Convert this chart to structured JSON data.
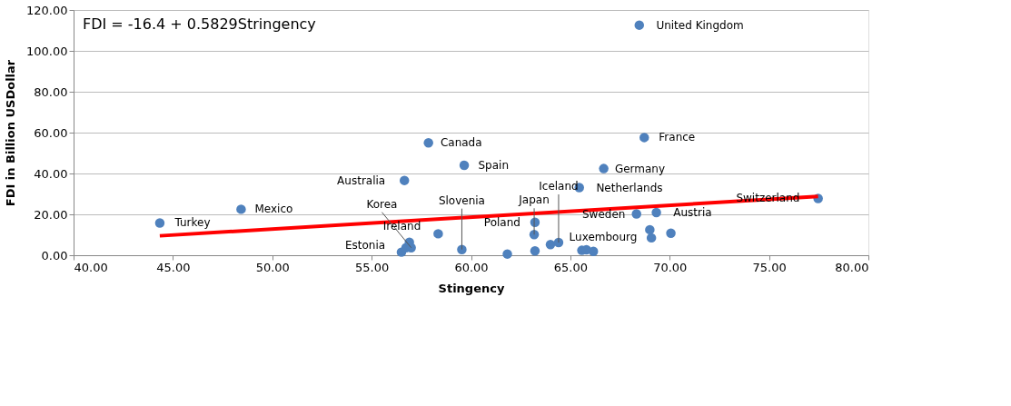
{
  "chart_data": {
    "type": "scatter",
    "xlabel": "Stingency",
    "ylabel": "FDI in Billion USDollar",
    "xlim": [
      40,
      80
    ],
    "ylim": [
      0,
      120
    ],
    "xticks": [
      {
        "value": 40,
        "label": "40.00"
      },
      {
        "value": 45,
        "label": "45.00"
      },
      {
        "value": 50,
        "label": "50.00"
      },
      {
        "value": 55,
        "label": "55.00"
      },
      {
        "value": 60,
        "label": "60.00"
      },
      {
        "value": 65,
        "label": "65.00"
      },
      {
        "value": 70,
        "label": "70.00"
      },
      {
        "value": 75,
        "label": "75.00"
      },
      {
        "value": 80,
        "label": "80.00"
      }
    ],
    "yticks": [
      {
        "value": 0,
        "label": "0.00"
      },
      {
        "value": 20,
        "label": "20.00"
      },
      {
        "value": 40,
        "label": "40.00"
      },
      {
        "value": 60,
        "label": "60.00"
      },
      {
        "value": 80,
        "label": "80.00"
      },
      {
        "value": 100,
        "label": "100.00"
      },
      {
        "value": 120,
        "label": "120.00"
      }
    ],
    "grid": "y",
    "series": [
      {
        "marker": "circle",
        "color": "#4f81bd",
        "x": [
          44.34,
          48.43,
          57.86,
          59.66,
          56.65,
          68.47,
          68.72,
          66.68,
          65.45,
          68.33,
          69.33,
          69.0,
          69.08,
          70.06,
          77.47,
          58.35,
          56.5,
          56.73,
          56.9,
          56.99,
          59.54,
          61.83,
          63.22,
          63.18,
          63.22,
          64.0,
          64.41,
          65.58,
          65.81,
          66.16
        ],
        "values": [
          15.8,
          22.5,
          55.0,
          44.0,
          36.6,
          112.6,
          57.6,
          42.4,
          33.1,
          20.2,
          20.9,
          12.5,
          8.5,
          10.8,
          27.8,
          10.5,
          1.5,
          3.7,
          6.3,
          3.7,
          2.8,
          0.6,
          16.1,
          10.1,
          2.1,
          5.2,
          6.2,
          2.4,
          2.7,
          1.9
        ]
      },
      {
        "type": "line",
        "line_style": "solid",
        "marker": "none",
        "color": "#ff0000",
        "x": [
          44.34,
          77.47
        ],
        "values": [
          9.5,
          28.8
        ]
      }
    ],
    "annotations": [
      "FDI = -16.4 + 0.5829Stringency",
      {
        "text": "United Kingdom",
        "x": 68.47,
        "y": 112.6
      },
      {
        "text": "France",
        "x": 68.72,
        "y": 57.6
      },
      {
        "text": "Canada",
        "x": 57.86,
        "y": 55.0
      },
      {
        "text": "Spain",
        "x": 59.66,
        "y": 44.0
      },
      {
        "text": "Australia",
        "x": 56.65,
        "y": 36.6
      },
      {
        "text": "Germany",
        "x": 66.68,
        "y": 42.4
      },
      {
        "text": "Netherlands",
        "x": 65.45,
        "y": 33.1
      },
      {
        "text": "Sweden",
        "x": 68.33,
        "y": 20.2
      },
      {
        "text": "Austria",
        "x": 69.33,
        "y": 20.9
      },
      {
        "text": "Luxembourg",
        "x": 69.0,
        "y": 12.5
      },
      {
        "text": "Switzerland",
        "x": 77.47,
        "y": 27.8
      },
      {
        "text": "Mexico",
        "x": 48.43,
        "y": 22.5
      },
      {
        "text": "Turkey",
        "x": 44.34,
        "y": 15.8
      },
      {
        "text": "Poland",
        "x": 63.22,
        "y": 16.1
      },
      {
        "text": "Japan",
        "x": 63.18,
        "y": 10.1
      },
      {
        "text": "Iceland",
        "x": 64.41,
        "y": 6.2
      },
      {
        "text": "Slovenia",
        "x": 59.54,
        "y": 2.8
      },
      {
        "text": "Ireland",
        "x": 58.35,
        "y": 10.5
      },
      {
        "text": "Korea",
        "x": 56.99,
        "y": 3.7
      },
      {
        "text": "Estonia",
        "x": 56.5,
        "y": 1.5
      }
    ]
  }
}
